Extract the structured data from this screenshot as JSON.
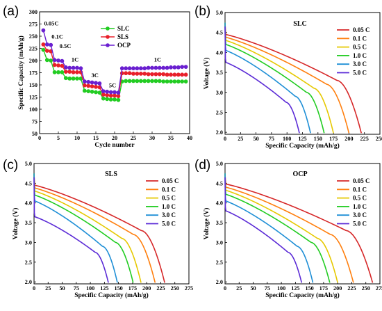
{
  "chart_data": [
    {
      "id": "a",
      "panel_label": "(a)",
      "type": "scatter",
      "xlabel": "Cycle number",
      "ylabel": "Specific Capacity (mAh/g)",
      "xlim": [
        0,
        40
      ],
      "ylim": [
        50,
        300
      ],
      "xticks": [
        "0",
        "5",
        "10",
        "15",
        "20",
        "25",
        "30",
        "35",
        "40"
      ],
      "yticks": [
        "50",
        "75",
        "100",
        "125",
        "150",
        "175",
        "200",
        "225",
        "250",
        "275",
        "300"
      ],
      "legend_position": "top-center",
      "rate_annotations": [
        {
          "text": "0.05C",
          "x": 1.2,
          "y": 272
        },
        {
          "text": "0.1C",
          "x": 3.2,
          "y": 245
        },
        {
          "text": "0.5C",
          "x": 5.3,
          "y": 226
        },
        {
          "text": "1C",
          "x": 8.5,
          "y": 198
        },
        {
          "text": "3C",
          "x": 13.8,
          "y": 166
        },
        {
          "text": "5C",
          "x": 18.5,
          "y": 145
        },
        {
          "text": "1C",
          "x": 30.5,
          "y": 198
        }
      ],
      "x": [
        1,
        2,
        3,
        4,
        5,
        6,
        7,
        8,
        9,
        10,
        11,
        12,
        13,
        14,
        15,
        16,
        17,
        18,
        19,
        20,
        21,
        22,
        23,
        24,
        25,
        26,
        27,
        28,
        29,
        30,
        31,
        32,
        33,
        34,
        35,
        36,
        37,
        38,
        39
      ],
      "series": [
        {
          "name": "SLC",
          "color": "#22cc22",
          "marker": "circle",
          "values": [
            222,
            201,
            200,
            176,
            176,
            176,
            164,
            163,
            163,
            163,
            163,
            138,
            137,
            136,
            135,
            134,
            122,
            121,
            120,
            120,
            119,
            157,
            158,
            158,
            158,
            158,
            158,
            158,
            158,
            158,
            158,
            158,
            157,
            157,
            157,
            157,
            157,
            157,
            157
          ]
        },
        {
          "name": "SLS",
          "color": "#e8202a",
          "marker": "circle",
          "values": [
            233,
            220,
            219,
            191,
            190,
            189,
            177,
            177,
            176,
            176,
            176,
            149,
            148,
            147,
            146,
            145,
            130,
            129,
            128,
            128,
            127,
            174,
            174,
            174,
            173,
            173,
            173,
            173,
            172,
            172,
            172,
            172,
            172,
            171,
            171,
            171,
            171,
            171,
            171
          ]
        },
        {
          "name": "OCP",
          "color": "#6a1fd0",
          "marker": "circle",
          "values": [
            262,
            233,
            232,
            201,
            200,
            199,
            186,
            185,
            185,
            185,
            184,
            157,
            156,
            155,
            154,
            153,
            137,
            136,
            135,
            135,
            134,
            184,
            184,
            184,
            184,
            184,
            184,
            184,
            185,
            185,
            185,
            185,
            185,
            185,
            186,
            186,
            186,
            187,
            187
          ]
        }
      ]
    },
    {
      "id": "b",
      "panel_label": "(b)",
      "panel_title": "SLC",
      "type": "line",
      "xlabel": "Specific Capacity (mAh/g)",
      "ylabel": "Voltage (V)",
      "xlim": [
        0,
        250
      ],
      "ylim": [
        1.95,
        5.0
      ],
      "xticks": [
        "0",
        "25",
        "50",
        "75",
        "100",
        "125",
        "150",
        "175",
        "200",
        "225",
        "250"
      ],
      "yticks": [
        "2.0",
        "2.5",
        "3.0",
        "3.5",
        "4.0",
        "4.5",
        "5.0"
      ],
      "legend_position": "top-right",
      "series": [
        {
          "name": "0.05 C",
          "color": "#d62728",
          "capacity": 220,
          "v_start": 4.45,
          "v_plateau_end": 3.3
        },
        {
          "name": "0.1 C",
          "color": "#ff7f0e",
          "capacity": 200,
          "v_start": 4.38,
          "v_plateau_end": 3.2
        },
        {
          "name": "0.5 C",
          "color": "#e6c800",
          "capacity": 175,
          "v_start": 4.3,
          "v_plateau_end": 3.1
        },
        {
          "name": "1.0 C",
          "color": "#22cc22",
          "capacity": 160,
          "v_start": 4.2,
          "v_plateau_end": 3.0
        },
        {
          "name": "3.0 C",
          "color": "#1f8fd6",
          "capacity": 138,
          "v_start": 4.05,
          "v_plateau_end": 2.9
        },
        {
          "name": "5.0 C",
          "color": "#5b2bd6",
          "capacity": 120,
          "v_start": 3.75,
          "v_plateau_end": 2.75
        }
      ]
    },
    {
      "id": "c",
      "panel_label": "(c)",
      "panel_title": "SLS",
      "type": "line",
      "xlabel": "Specific Capacity (mAh/g)",
      "ylabel": "Voltage (V)",
      "xlim": [
        0,
        275
      ],
      "ylim": [
        1.95,
        5.0
      ],
      "xticks": [
        "0",
        "25",
        "50",
        "75",
        "100",
        "125",
        "150",
        "175",
        "200",
        "225",
        "250",
        "275"
      ],
      "yticks": [
        "2.0",
        "2.5",
        "3.0",
        "3.5",
        "4.0",
        "4.5",
        "5.0"
      ],
      "legend_position": "top-right",
      "series": [
        {
          "name": "0.05 C",
          "color": "#d62728",
          "capacity": 232,
          "v_start": 4.45,
          "v_plateau_end": 3.3
        },
        {
          "name": "0.1 C",
          "color": "#ff7f0e",
          "capacity": 215,
          "v_start": 4.38,
          "v_plateau_end": 3.2
        },
        {
          "name": "0.5 C",
          "color": "#e6c800",
          "capacity": 190,
          "v_start": 4.3,
          "v_plateau_end": 3.1
        },
        {
          "name": "1.0 C",
          "color": "#22cc22",
          "capacity": 176,
          "v_start": 4.2,
          "v_plateau_end": 3.0
        },
        {
          "name": "3.0 C",
          "color": "#1f8fd6",
          "capacity": 148,
          "v_start": 4.05,
          "v_plateau_end": 2.9
        },
        {
          "name": "5.0 C",
          "color": "#5b2bd6",
          "capacity": 132,
          "v_start": 3.65,
          "v_plateau_end": 2.75
        }
      ]
    },
    {
      "id": "d",
      "panel_label": "(d)",
      "panel_title": "OCP",
      "type": "line",
      "xlabel": "Specific Capacity (mAh/g)",
      "ylabel": "Voltage (V)",
      "xlim": [
        0,
        275
      ],
      "ylim": [
        1.95,
        5.0
      ],
      "xticks": [
        "0",
        "25",
        "50",
        "75",
        "100",
        "125",
        "150",
        "175",
        "200",
        "225",
        "250",
        "275"
      ],
      "yticks": [
        "2.0",
        "2.5",
        "3.0",
        "3.5",
        "4.0",
        "4.5",
        "5.0"
      ],
      "legend_position": "top-right",
      "series": [
        {
          "name": "0.05 C",
          "color": "#d62728",
          "capacity": 262,
          "v_start": 4.48,
          "v_plateau_end": 3.3
        },
        {
          "name": "0.1 C",
          "color": "#ff7f0e",
          "capacity": 228,
          "v_start": 4.4,
          "v_plateau_end": 3.2
        },
        {
          "name": "0.5 C",
          "color": "#e6c800",
          "capacity": 200,
          "v_start": 4.32,
          "v_plateau_end": 3.1
        },
        {
          "name": "1.0 C",
          "color": "#22cc22",
          "capacity": 186,
          "v_start": 4.22,
          "v_plateau_end": 3.0
        },
        {
          "name": "3.0 C",
          "color": "#1f8fd6",
          "capacity": 156,
          "v_start": 4.05,
          "v_plateau_end": 2.9
        },
        {
          "name": "5.0 C",
          "color": "#5b2bd6",
          "capacity": 136,
          "v_start": 3.8,
          "v_plateau_end": 2.75
        }
      ]
    }
  ]
}
